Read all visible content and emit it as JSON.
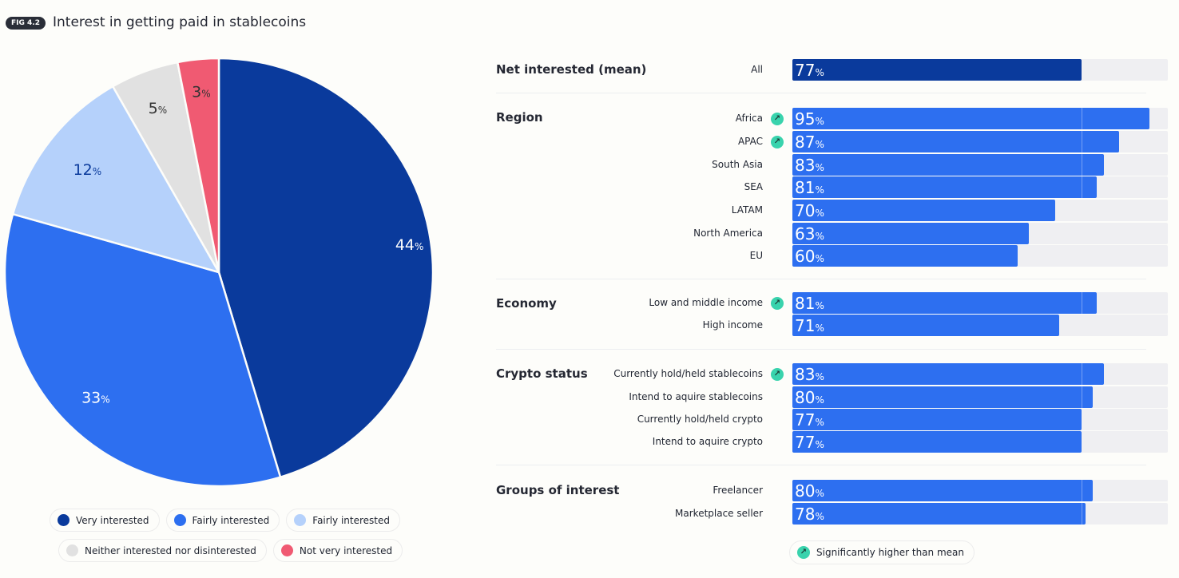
{
  "header": {
    "fig_label": "FIG 4.2",
    "title": "Interest in getting paid in stablecoins"
  },
  "colors": {
    "very": "#0a3a9c",
    "fairly": "#2d6ff0",
    "fairly_light": "#b5d1fb",
    "neither": "#e1e1e1",
    "not_very": "#f05a72",
    "mean_bar": "#0a3a9c",
    "significance": "#39d3ad",
    "track": "#efeff2"
  },
  "chart_data": [
    {
      "type": "pie",
      "title": "Interest in getting paid in stablecoins",
      "unit": "%",
      "slices": [
        {
          "label": "Very interested",
          "value": 44,
          "color": "#0a3a9c"
        },
        {
          "label": "Fairly interested",
          "value": 33,
          "color": "#2d6ff0"
        },
        {
          "label": "Fairly interested",
          "value": 12,
          "color": "#b5d1fb"
        },
        {
          "label": "Neither interested nor disinterested",
          "value": 5,
          "color": "#e1e1e1"
        },
        {
          "label": "Not very interested",
          "value": 3,
          "color": "#f05a72"
        }
      ],
      "legend_placement": "bottom"
    },
    {
      "type": "bar",
      "orientation": "horizontal",
      "unit": "%",
      "xlim": [
        0,
        100
      ],
      "mean_marker": 77,
      "sections": [
        {
          "title": "Net interested (mean)",
          "rows": [
            {
              "label": "All",
              "value": 77,
              "significant": false
            }
          ]
        },
        {
          "title": "Region",
          "rows": [
            {
              "label": "Africa",
              "value": 95,
              "significant": true
            },
            {
              "label": "APAC",
              "value": 87,
              "significant": true
            },
            {
              "label": "South Asia",
              "value": 83,
              "significant": false
            },
            {
              "label": "SEA",
              "value": 81,
              "significant": false
            },
            {
              "label": "LATAM",
              "value": 70,
              "significant": false
            },
            {
              "label": "North America",
              "value": 63,
              "significant": false
            },
            {
              "label": "EU",
              "value": 60,
              "significant": false
            }
          ]
        },
        {
          "title": "Economy",
          "rows": [
            {
              "label": "Low and middle income",
              "value": 81,
              "significant": true
            },
            {
              "label": "High income",
              "value": 71,
              "significant": false
            }
          ]
        },
        {
          "title": "Crypto status",
          "rows": [
            {
              "label": "Currently hold/held stablecoins",
              "value": 83,
              "significant": true
            },
            {
              "label": "Intend to aquire stablecoins",
              "value": 80,
              "significant": false
            },
            {
              "label": "Currently hold/held crypto",
              "value": 77,
              "significant": false
            },
            {
              "label": "Intend to aquire crypto",
              "value": 77,
              "significant": false
            }
          ]
        },
        {
          "title": "Groups of interest",
          "rows": [
            {
              "label": "Freelancer",
              "value": 80,
              "significant": false
            },
            {
              "label": "Marketplace seller",
              "value": 78,
              "significant": false
            }
          ]
        }
      ],
      "legend": {
        "significance_label": "Significantly higher than mean",
        "icon": "arrow-up-right-icon"
      }
    }
  ]
}
